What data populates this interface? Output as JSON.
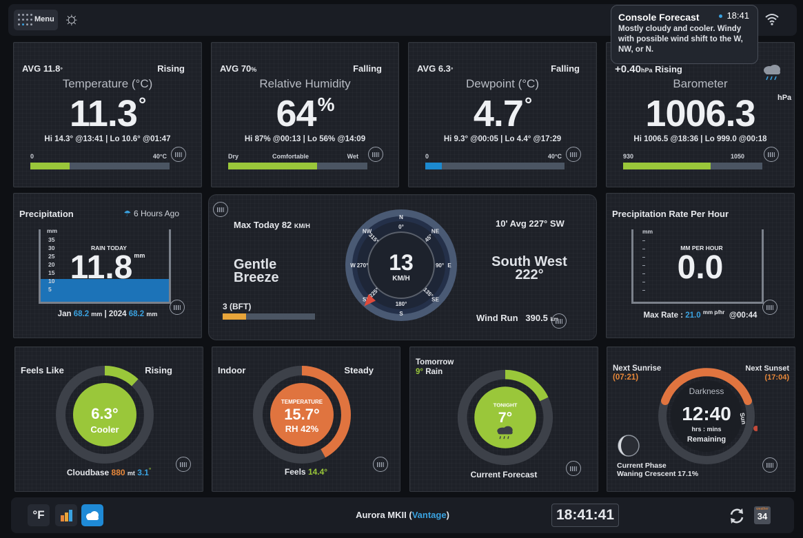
{
  "topbar": {
    "menu_label": "Menu"
  },
  "console_forecast": {
    "title": "Console Forecast",
    "time": "18:41",
    "text": "Mostly cloudy and cooler. Windy with possible wind shift to the W, NW, or N."
  },
  "temperature": {
    "avg_label": "AVG 11.8",
    "avg_unit": "°",
    "trend": "Rising",
    "title": "Temperature (°C)",
    "value": "11.3",
    "unit": "°",
    "hilo": "Hi 14.3° @13:41 | Lo 10.6° @01:47",
    "bar_min": "0",
    "bar_max": "40°C",
    "bar_fraction": 0.28,
    "bar_color": "#9ac73a"
  },
  "humidity": {
    "avg_label": "AVG 70",
    "avg_unit": "%",
    "trend": "Falling",
    "title": "Relative Humidity",
    "value": "64",
    "unit": "%",
    "hilo": "Hi 87% @00:13 | Lo 56% @14:09",
    "bar_left": "Dry",
    "bar_mid": "Comfortable",
    "bar_right": "Wet",
    "bar_fraction": 0.64,
    "bar_color": "#9ac73a"
  },
  "dewpoint": {
    "avg_label": "AVG 6.3",
    "avg_unit": "°",
    "trend": "Falling",
    "title": "Dewpoint (°C)",
    "value": "4.7",
    "unit": "°",
    "hilo": "Hi 9.3° @00:05 | Lo 4.4° @17:29",
    "bar_min": "0",
    "bar_max": "40°C",
    "bar_fraction": 0.12,
    "bar_color": "#1c8ad0"
  },
  "barometer": {
    "trend_value": "+0.40",
    "trend_unit": "hPa",
    "trend": "Rising",
    "title": "Barometer",
    "value": "1006.3",
    "unit": "hPa",
    "hilo": "Hi 1006.5 @18:36 | Lo 999.0 @00:18",
    "bar_min": "930",
    "bar_max": "1050",
    "bar_fraction": 0.63,
    "bar_color": "#9ac73a",
    "icon": "rain-cloud-icon"
  },
  "precipitation": {
    "title": "Precipitation",
    "ago": "6 Hours Ago",
    "scale_unit": "mm",
    "scale": [
      "35",
      "30",
      "25",
      "20",
      "15",
      "10",
      "5"
    ],
    "caption": "RAIN TODAY",
    "value": "11.8",
    "unit": "mm",
    "month_label": "Jan",
    "month_value": "68.2",
    "year_label": "2024",
    "year_value": "68.2",
    "mm": "mm"
  },
  "wind": {
    "max_today": "Max Today 82",
    "max_unit": "KM/H",
    "beaufort_desc_1": "Gentle",
    "beaufort_desc_2": "Breeze",
    "beaufort": "3 (BFT)",
    "beaufort_fraction": 0.25,
    "speed": "13",
    "speed_unit": "KM/H",
    "avg": "10' Avg 227° SW",
    "direction_name": "South West",
    "direction_deg": "222°",
    "wind_run_label": "Wind Run",
    "wind_run_value": "390.5",
    "wind_run_unit": "km",
    "compass_points": [
      "N",
      "NE",
      "E",
      "SE",
      "S",
      "SW",
      "W",
      "NW"
    ],
    "degree_labels": [
      "0°",
      "45°",
      "90°",
      "135°",
      "180°",
      "225°",
      "270°",
      "315°"
    ],
    "pointer_direction": 222
  },
  "precip_rate": {
    "title": "Precipitation Rate Per Hour",
    "scale_unit": "mm",
    "caption": "MM PER HOUR",
    "value": "0.0",
    "max_label": "Max Rate :",
    "max_value": "21.0",
    "max_unit": "mm p/hr",
    "max_time": "@00:44"
  },
  "feels_like": {
    "title": "Feels Like",
    "trend": "Rising",
    "value": "6.3°",
    "desc": "Cooler",
    "arc_fraction": 0.12,
    "cloudbase_label": "Cloudbase",
    "cloudbase_value": "880",
    "cloudbase_unit": "mt",
    "cloudbase_extra": "3.1",
    "cloudbase_extra_unit": "°"
  },
  "indoor": {
    "title": "Indoor",
    "trend": "Steady",
    "caption": "TEMPERATURE",
    "value": "15.7°",
    "rh": "RH 42%",
    "arc_fraction": 0.42,
    "feels_label": "Feels",
    "feels_value": "14.4°"
  },
  "tomorrow": {
    "title": "Tomorrow",
    "rain_value": "9°",
    "rain_label": "Rain",
    "caption": "TONIGHT",
    "value": "7°",
    "arc_fraction": 0.18,
    "footer": "Current Forecast"
  },
  "sun": {
    "sunrise_label": "Next Sunrise",
    "sunrise_time": "(07:21)",
    "sunset_label": "Next Sunset",
    "sunset_time": "(17:04)",
    "state": "Darkness",
    "time": "12:40",
    "unit": "hrs : mins",
    "remaining": "Remaining",
    "side_label": "Sun",
    "phase_label": "Current Phase",
    "phase_value": "Waning Crescent 17.1%"
  },
  "footer": {
    "unit_button": "°F",
    "station_name": "Aurora MKII (",
    "station_model": "Vantage",
    "station_close": ")",
    "clock": "18:41:41",
    "calendar_top": "weather",
    "calendar_day": "34"
  }
}
